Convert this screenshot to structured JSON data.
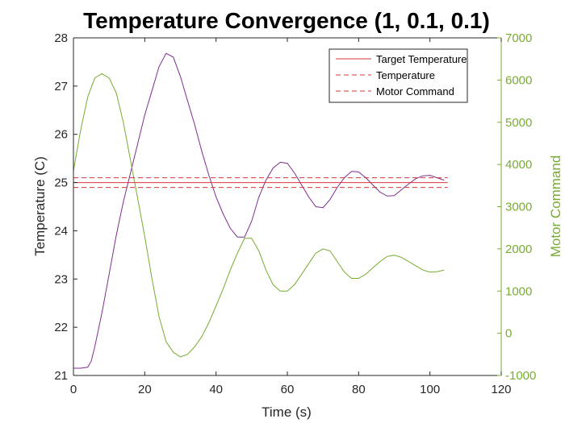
{
  "chart_data": {
    "type": "line",
    "title": "Temperature Convergence (1, 0.1, 0.1)",
    "xlabel": "Time (s)",
    "ylabel": "Temperature (C)",
    "y2label": "Motor Command",
    "xlim": [
      0,
      120
    ],
    "ylim": [
      21,
      28
    ],
    "y2lim": [
      -1000,
      7000
    ],
    "xticks": [
      0,
      20,
      40,
      60,
      80,
      100,
      120
    ],
    "yticks": [
      21,
      22,
      23,
      24,
      25,
      26,
      27,
      28
    ],
    "y2ticks": [
      -1000,
      0,
      1000,
      2000,
      3000,
      4000,
      5000,
      6000,
      7000
    ],
    "grid": false,
    "legend_position": "top-right",
    "colors": {
      "temperature": "#7E2F8E",
      "motor": "#77AC30",
      "reference": "#D9343A",
      "axis_right": "#77AC30",
      "axis_left": "#262626"
    },
    "series": [
      {
        "name": "Temperature",
        "axis": "left",
        "color": "#7E2F8E",
        "style": "solid",
        "x": [
          0,
          2,
          4,
          5,
          6,
          8,
          10,
          12,
          14,
          16,
          18,
          20,
          22,
          24,
          26,
          28,
          30,
          32,
          34,
          36,
          38,
          40,
          42,
          44,
          46,
          48,
          50,
          52,
          54,
          56,
          58,
          60,
          62,
          64,
          66,
          68,
          70,
          72,
          74,
          76,
          78,
          80,
          82,
          84,
          86,
          88,
          90,
          92,
          94,
          96,
          98,
          100,
          102,
          104
        ],
        "y": [
          21.15,
          21.15,
          21.17,
          21.3,
          21.6,
          22.3,
          23.1,
          23.9,
          24.6,
          25.2,
          25.8,
          26.4,
          26.9,
          27.4,
          27.68,
          27.6,
          27.2,
          26.7,
          26.2,
          25.65,
          25.15,
          24.7,
          24.35,
          24.05,
          23.87,
          23.87,
          24.2,
          24.7,
          25.05,
          25.3,
          25.42,
          25.4,
          25.2,
          24.95,
          24.7,
          24.5,
          24.48,
          24.65,
          24.9,
          25.1,
          25.23,
          25.22,
          25.1,
          24.95,
          24.8,
          24.72,
          24.73,
          24.85,
          24.97,
          25.08,
          25.14,
          25.15,
          25.1,
          25.05
        ]
      },
      {
        "name": "Motor Command",
        "axis": "right",
        "color": "#77AC30",
        "style": "solid",
        "x": [
          0,
          2,
          4,
          6,
          8,
          10,
          12,
          14,
          16,
          18,
          20,
          22,
          24,
          26,
          28,
          30,
          32,
          34,
          36,
          38,
          40,
          42,
          44,
          46,
          48,
          50,
          52,
          54,
          56,
          58,
          60,
          62,
          64,
          66,
          68,
          70,
          72,
          74,
          76,
          78,
          80,
          82,
          84,
          86,
          88,
          90,
          92,
          94,
          96,
          98,
          100,
          102,
          104
        ],
        "y": [
          3850,
          4800,
          5600,
          6050,
          6150,
          6050,
          5700,
          5000,
          4100,
          3200,
          2300,
          1300,
          400,
          -200,
          -450,
          -560,
          -500,
          -320,
          -80,
          250,
          650,
          1050,
          1500,
          1900,
          2250,
          2250,
          1950,
          1500,
          1150,
          1000,
          1000,
          1150,
          1400,
          1650,
          1900,
          2000,
          1950,
          1700,
          1450,
          1300,
          1300,
          1400,
          1550,
          1700,
          1820,
          1850,
          1800,
          1700,
          1600,
          1500,
          1450,
          1460,
          1500
        ]
      },
      {
        "name": "Target Temperature",
        "axis": "left",
        "color": "#D9343A",
        "style": "solid",
        "x": [
          0,
          105
        ],
        "y": [
          25.0,
          25.0
        ]
      },
      {
        "name": "Temperature upper bound",
        "axis": "left",
        "color": "#D9343A",
        "style": "dashed",
        "x": [
          0,
          105
        ],
        "y": [
          25.1,
          25.1
        ]
      },
      {
        "name": "Temperature lower bound",
        "axis": "left",
        "color": "#D9343A",
        "style": "dashed",
        "x": [
          0,
          105
        ],
        "y": [
          24.9,
          24.9
        ]
      }
    ],
    "legend": [
      {
        "label": "Target Temperature",
        "style": "solid",
        "color": "#D9343A"
      },
      {
        "label": "Temperature",
        "style": "dashed",
        "color": "#D9343A"
      },
      {
        "label": "Motor Command",
        "style": "dashed",
        "color": "#D9343A"
      }
    ]
  }
}
